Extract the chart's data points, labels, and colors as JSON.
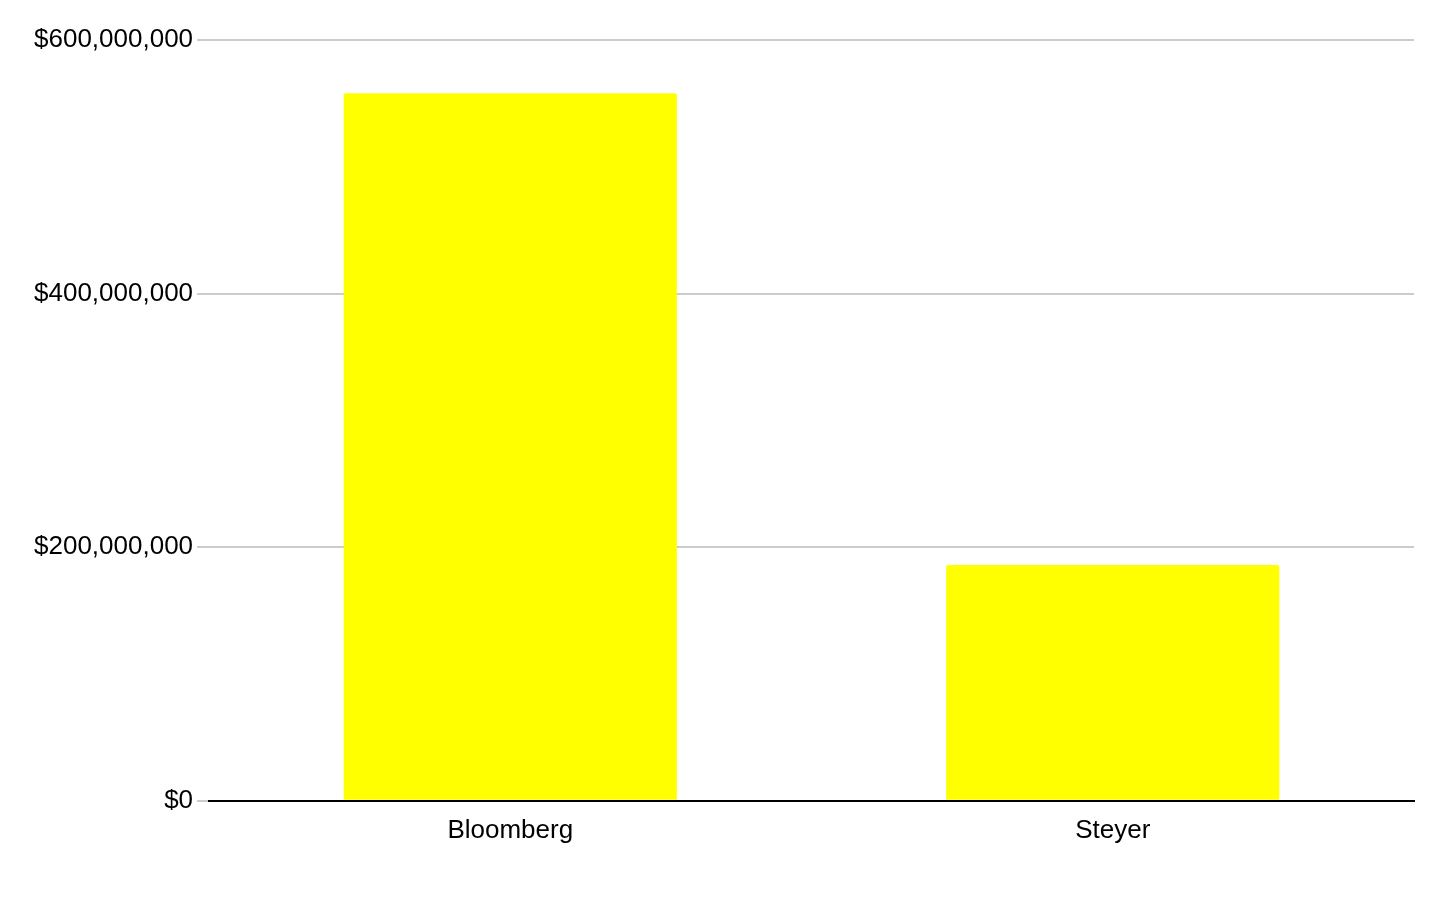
{
  "chart_data": {
    "type": "bar",
    "categories": [
      "Bloomberg",
      "Steyer"
    ],
    "values": [
      558000000,
      186000000
    ],
    "color": "#ffff00",
    "ylim": [
      0,
      600000000
    ],
    "yticks": [
      {
        "value": 0,
        "label": "$0"
      },
      {
        "value": 200000000,
        "label": "$200,000,000"
      },
      {
        "value": 400000000,
        "label": "$400,000,000"
      },
      {
        "value": 600000000,
        "label": "$600,000,000"
      }
    ],
    "grid": "y",
    "legend": false
  }
}
